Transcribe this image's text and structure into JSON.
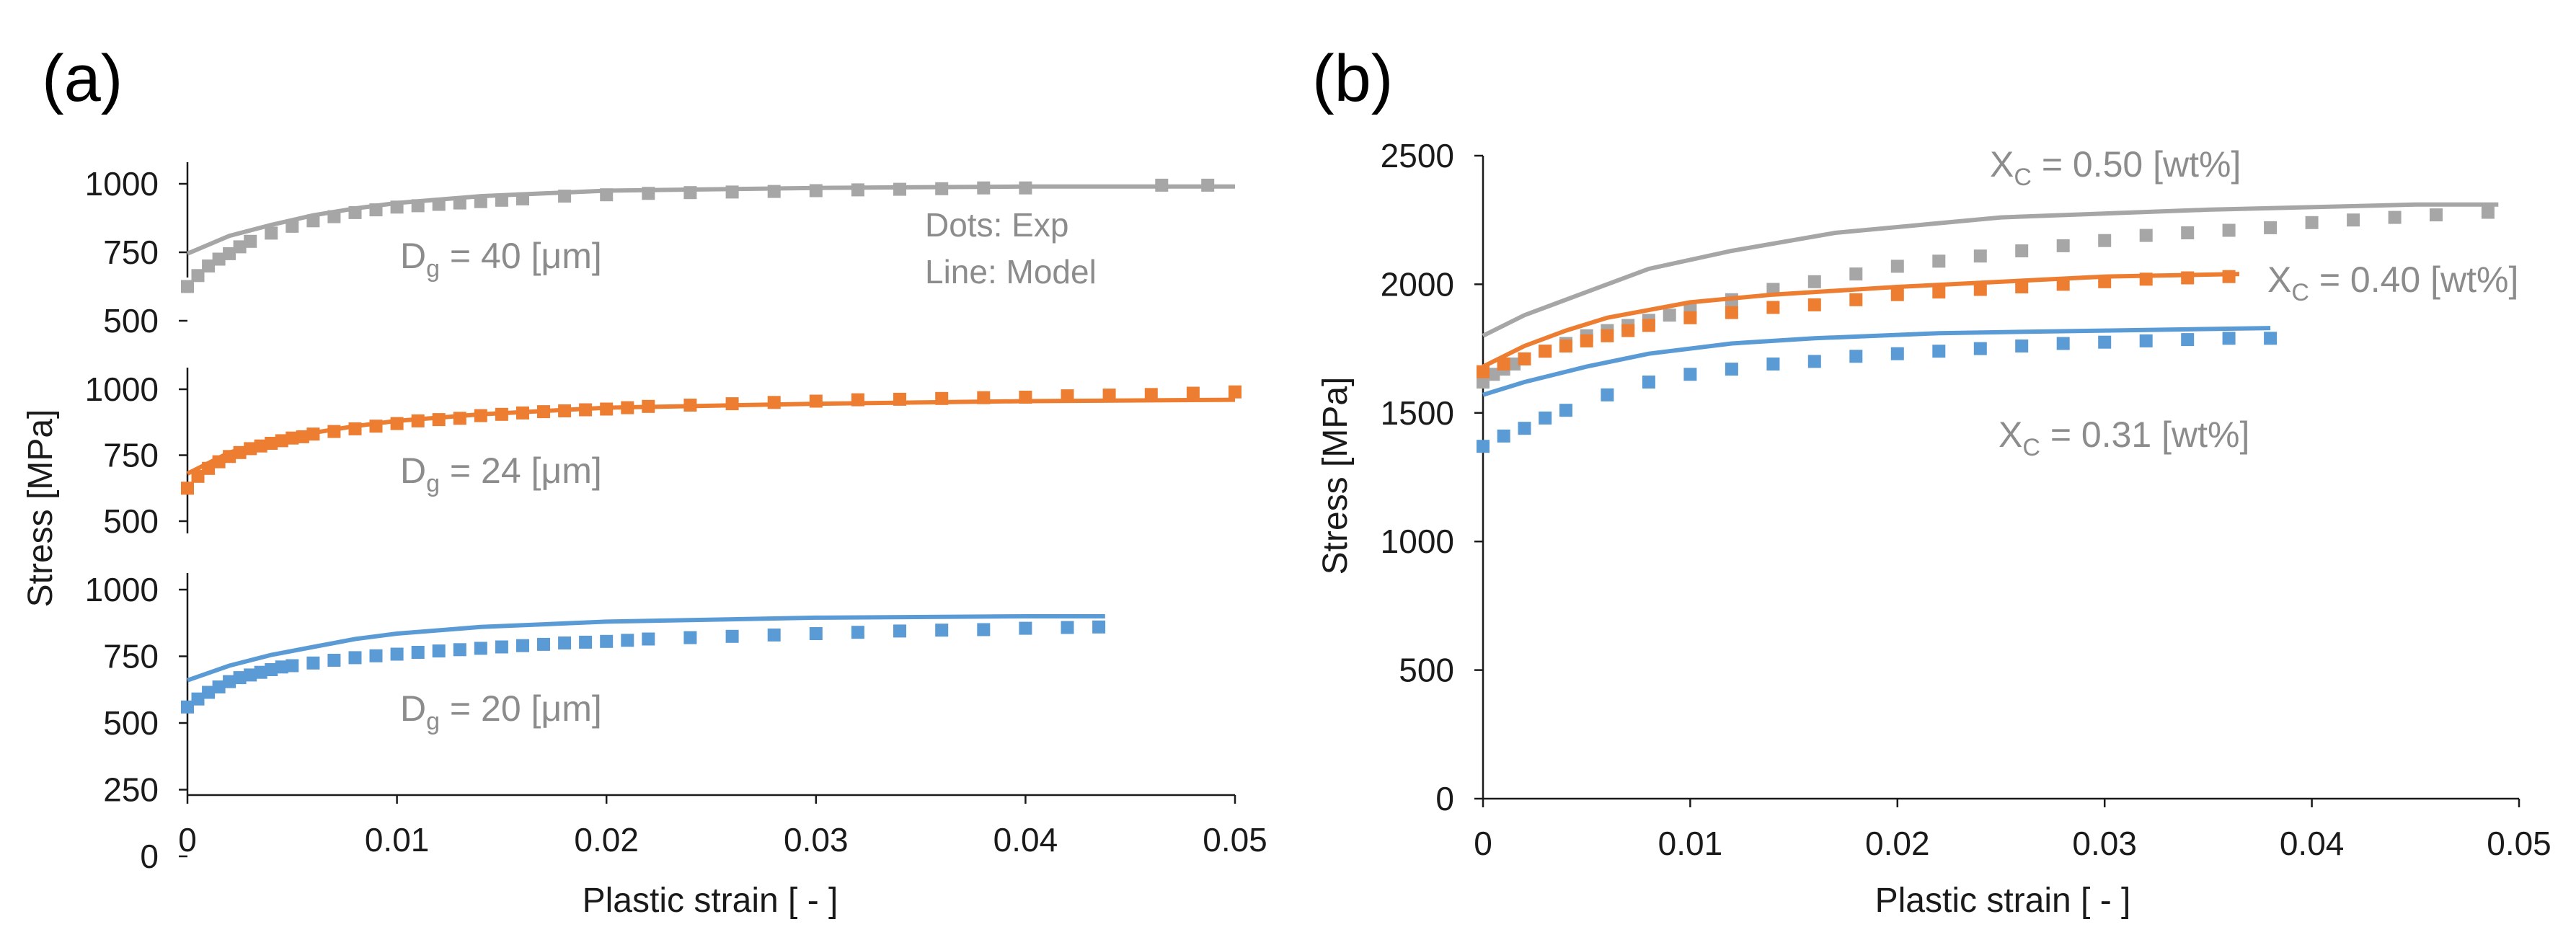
{
  "colors": {
    "gray": "#a6a6a6",
    "orange": "#ed7d31",
    "blue": "#5b9bd5",
    "annotation": "#8c8c8c"
  },
  "chart_data": [
    {
      "panel": "(a)",
      "type": "line",
      "xlabel": "Plastic strain [ - ]",
      "ylabel": "Stress [MPa]",
      "xlim": [
        0,
        0.05
      ],
      "xticks": [
        "0",
        "0.01",
        "0.02",
        "0.03",
        "0.04",
        "0.05"
      ],
      "legend_note": {
        "dots": "Dots: Exp",
        "line": "Line: Model"
      },
      "subplots": [
        {
          "label_main": "D",
          "label_sub": "g",
          "label_rest": " = 40 [μm]",
          "color": "gray",
          "yticks": [
            "1000",
            "750",
            "500"
          ],
          "ylim": [
            500,
            1050
          ],
          "model": {
            "x": [
              0,
              0.002,
              0.004,
              0.006,
              0.008,
              0.01,
              0.014,
              0.02,
              0.03,
              0.04,
              0.05
            ],
            "y": [
              745,
              810,
              850,
              885,
              910,
              930,
              955,
              975,
              985,
              990,
              990
            ]
          },
          "exp": {
            "x": [
              0,
              0.0005,
              0.001,
              0.0015,
              0.002,
              0.0025,
              0.003,
              0.004,
              0.005,
              0.006,
              0.007,
              0.008,
              0.009,
              0.01,
              0.011,
              0.012,
              0.013,
              0.014,
              0.015,
              0.016,
              0.018,
              0.02,
              0.022,
              0.024,
              0.026,
              0.028,
              0.03,
              0.032,
              0.034,
              0.036,
              0.038,
              0.04,
              0.0465,
              0.0487
            ],
            "y": [
              625,
              665,
              700,
              725,
              745,
              770,
              790,
              820,
              845,
              865,
              880,
              895,
              905,
              915,
              920,
              925,
              930,
              935,
              940,
              945,
              955,
              960,
              965,
              968,
              970,
              972,
              975,
              978,
              980,
              982,
              985,
              985,
              995,
              995
            ]
          }
        },
        {
          "label_main": "D",
          "label_sub": "g",
          "label_rest": " = 24 [μm]",
          "color": "orange",
          "yticks": [
            "1000",
            "750",
            "500"
          ],
          "ylim": [
            450,
            1050
          ],
          "model": {
            "x": [
              0,
              0.002,
              0.004,
              0.006,
              0.008,
              0.01,
              0.014,
              0.02,
              0.03,
              0.04,
              0.05
            ],
            "y": [
              680,
              760,
              805,
              835,
              860,
              880,
              905,
              930,
              945,
              955,
              960
            ]
          },
          "exp": {
            "x": [
              0,
              0.0005,
              0.001,
              0.0015,
              0.002,
              0.0025,
              0.003,
              0.0035,
              0.004,
              0.0045,
              0.005,
              0.0055,
              0.006,
              0.007,
              0.008,
              0.009,
              0.01,
              0.011,
              0.012,
              0.013,
              0.014,
              0.015,
              0.016,
              0.017,
              0.018,
              0.019,
              0.02,
              0.021,
              0.022,
              0.024,
              0.026,
              0.028,
              0.03,
              0.032,
              0.034,
              0.036,
              0.038,
              0.04,
              0.042,
              0.044,
              0.046,
              0.048,
              0.05
            ],
            "y": [
              625,
              670,
              700,
              725,
              745,
              760,
              775,
              785,
              795,
              805,
              815,
              820,
              830,
              840,
              850,
              860,
              870,
              880,
              885,
              890,
              900,
              905,
              910,
              915,
              918,
              922,
              925,
              930,
              935,
              940,
              945,
              950,
              955,
              960,
              962,
              965,
              968,
              970,
              975,
              978,
              980,
              985,
              990
            ]
          }
        },
        {
          "label_main": "D",
          "label_sub": "g",
          "label_rest": " = 20 [μm]",
          "color": "blue",
          "yticks": [
            "1000",
            "750",
            "500",
            "250",
            "0"
          ],
          "ylim": [
            0,
            1100
          ],
          "model": {
            "x": [
              0,
              0.002,
              0.004,
              0.006,
              0.008,
              0.01,
              0.014,
              0.02,
              0.03,
              0.04,
              0.0438
            ],
            "y": [
              660,
              715,
              755,
              785,
              815,
              835,
              860,
              880,
              895,
              900,
              900
            ]
          },
          "exp": {
            "x": [
              0,
              0.0005,
              0.001,
              0.0015,
              0.002,
              0.0025,
              0.003,
              0.0035,
              0.004,
              0.0045,
              0.005,
              0.006,
              0.007,
              0.008,
              0.009,
              0.01,
              0.011,
              0.012,
              0.013,
              0.014,
              0.015,
              0.016,
              0.017,
              0.018,
              0.019,
              0.02,
              0.021,
              0.022,
              0.024,
              0.026,
              0.028,
              0.03,
              0.032,
              0.034,
              0.036,
              0.038,
              0.04,
              0.042,
              0.0435
            ],
            "y": [
              560,
              590,
              615,
              635,
              655,
              670,
              680,
              690,
              700,
              710,
              715,
              725,
              735,
              745,
              752,
              758,
              765,
              770,
              775,
              780,
              785,
              790,
              795,
              800,
              803,
              806,
              810,
              815,
              820,
              825,
              830,
              835,
              840,
              845,
              848,
              850,
              855,
              858,
              860
            ]
          }
        }
      ]
    },
    {
      "panel": "(b)",
      "type": "line",
      "xlabel": "Plastic strain [ - ]",
      "ylabel": "Stress [MPa]",
      "xlim": [
        0,
        0.05
      ],
      "ylim": [
        0,
        2500
      ],
      "xticks": [
        "0",
        "0.01",
        "0.02",
        "0.03",
        "0.04",
        "0.05"
      ],
      "yticks": [
        "2500",
        "2000",
        "1500",
        "1000",
        "500",
        "0"
      ],
      "series": [
        {
          "label_main": "X",
          "label_sub": "C",
          "label_rest": " = 0.50 [wt%]",
          "color": "gray",
          "model": {
            "x": [
              0,
              0.002,
              0.005,
              0.008,
              0.012,
              0.017,
              0.025,
              0.035,
              0.045,
              0.049
            ],
            "y": [
              1800,
              1880,
              1970,
              2060,
              2130,
              2200,
              2260,
              2290,
              2310,
              2310
            ]
          },
          "exp": {
            "x": [
              0,
              0.0005,
              0.001,
              0.0015,
              0.002,
              0.003,
              0.004,
              0.005,
              0.006,
              0.007,
              0.008,
              0.009,
              0.01,
              0.012,
              0.014,
              0.016,
              0.018,
              0.02,
              0.022,
              0.024,
              0.026,
              0.028,
              0.03,
              0.032,
              0.034,
              0.036,
              0.038,
              0.04,
              0.042,
              0.044,
              0.046,
              0.0485
            ],
            "y": [
              1620,
              1650,
              1670,
              1690,
              1710,
              1740,
              1770,
              1800,
              1820,
              1840,
              1860,
              1880,
              1900,
              1940,
              1980,
              2010,
              2040,
              2070,
              2090,
              2110,
              2130,
              2150,
              2170,
              2190,
              2200,
              2210,
              2220,
              2240,
              2250,
              2260,
              2270,
              2280
            ]
          }
        },
        {
          "label_main": "X",
          "label_sub": "C",
          "label_rest": " = 0.40 [wt%]",
          "color": "orange",
          "model": {
            "x": [
              0,
              0.002,
              0.004,
              0.006,
              0.008,
              0.01,
              0.014,
              0.02,
              0.03,
              0.0365
            ],
            "y": [
              1680,
              1760,
              1820,
              1870,
              1900,
              1930,
              1960,
              1990,
              2030,
              2040
            ]
          },
          "exp": {
            "x": [
              0,
              0.001,
              0.002,
              0.003,
              0.004,
              0.005,
              0.006,
              0.007,
              0.008,
              0.01,
              0.012,
              0.014,
              0.016,
              0.018,
              0.02,
              0.022,
              0.024,
              0.026,
              0.028,
              0.03,
              0.032,
              0.034,
              0.036
            ],
            "y": [
              1660,
              1690,
              1710,
              1740,
              1760,
              1780,
              1800,
              1820,
              1840,
              1870,
              1890,
              1910,
              1920,
              1940,
              1960,
              1970,
              1980,
              1990,
              2000,
              2010,
              2020,
              2025,
              2030
            ]
          }
        },
        {
          "label_main": "X",
          "label_sub": "C",
          "label_rest": " = 0.31 [wt%]",
          "color": "blue",
          "model": {
            "x": [
              0,
              0.002,
              0.005,
              0.008,
              0.012,
              0.016,
              0.022,
              0.03,
              0.038
            ],
            "y": [
              1570,
              1620,
              1680,
              1730,
              1770,
              1790,
              1810,
              1820,
              1830
            ]
          },
          "exp": {
            "x": [
              0,
              0.001,
              0.002,
              0.003,
              0.004,
              0.006,
              0.008,
              0.01,
              0.012,
              0.014,
              0.016,
              0.018,
              0.02,
              0.022,
              0.024,
              0.026,
              0.028,
              0.03,
              0.032,
              0.034,
              0.036,
              0.038
            ],
            "y": [
              1370,
              1410,
              1440,
              1480,
              1510,
              1570,
              1620,
              1650,
              1670,
              1690,
              1700,
              1720,
              1730,
              1740,
              1750,
              1760,
              1770,
              1775,
              1780,
              1785,
              1790,
              1790
            ]
          }
        }
      ]
    }
  ]
}
